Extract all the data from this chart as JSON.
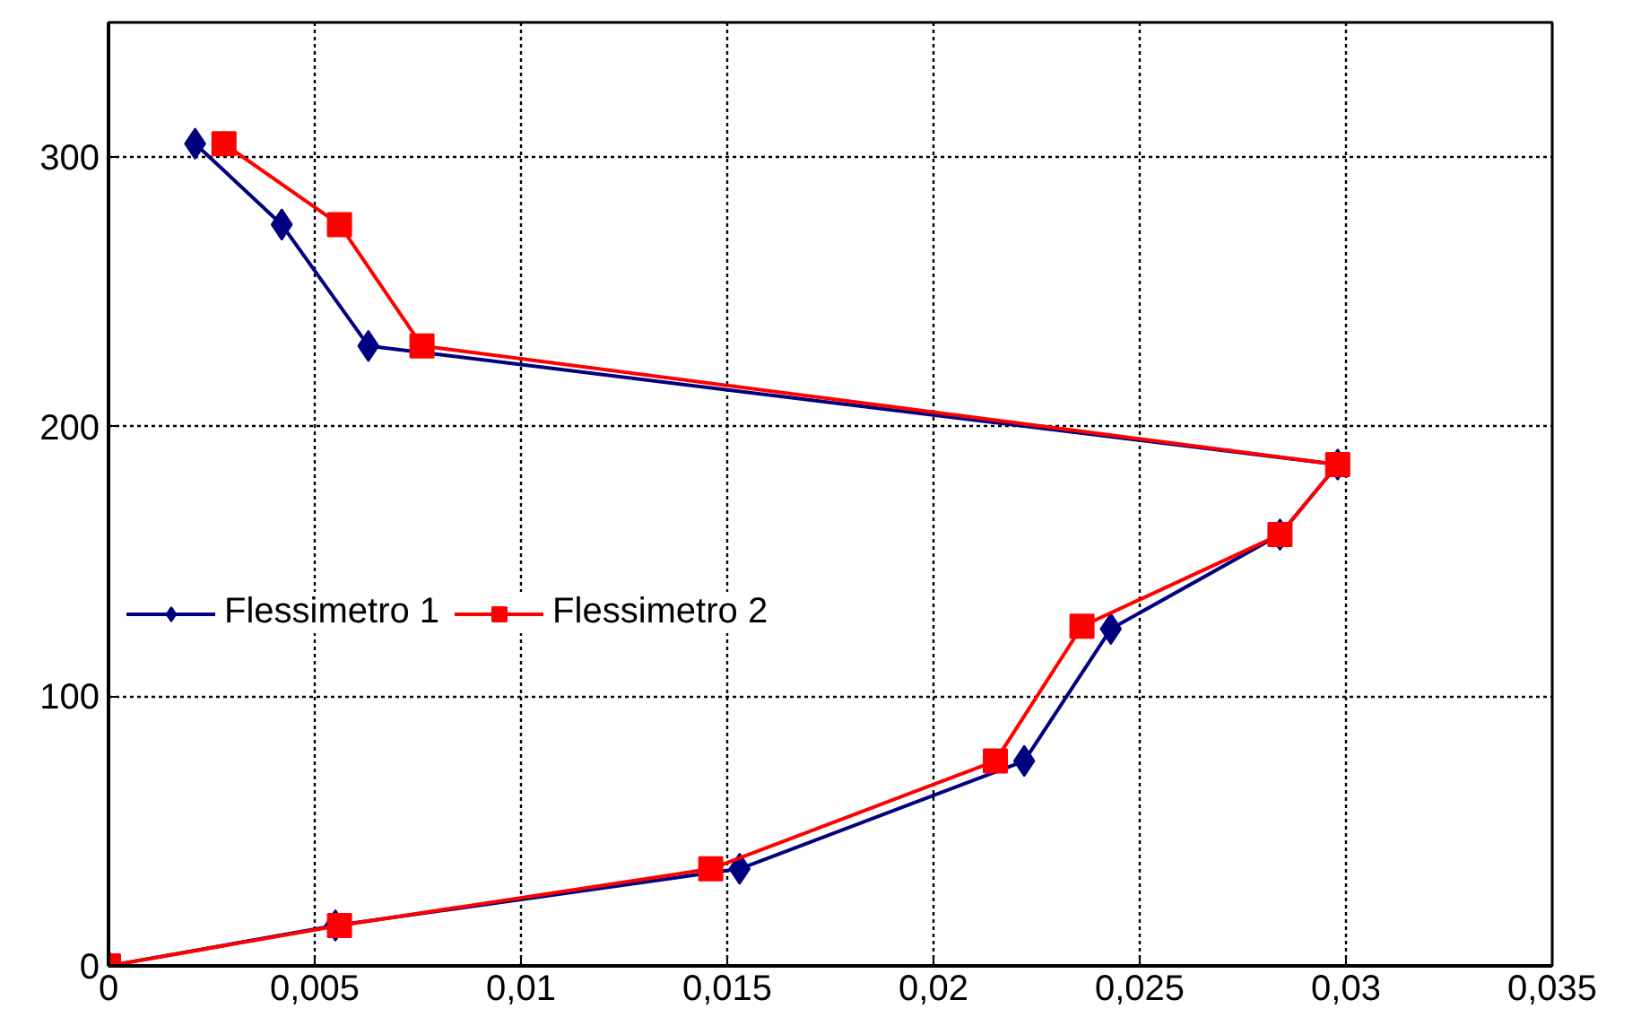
{
  "chart_data": {
    "type": "line",
    "series": [
      {
        "name": "Flessimetro 1",
        "color": "#000080",
        "marker": "diamond",
        "x": [
          0,
          0.0055,
          0.0153,
          0.0222,
          0.0243,
          0.0284,
          0.0298,
          0.0063,
          0.0042,
          0.0021
        ],
        "values": [
          0,
          15,
          36,
          76,
          125,
          160,
          186,
          230,
          275,
          305
        ]
      },
      {
        "name": "Flessimetro 2",
        "color": "#ff0000",
        "marker": "square",
        "x": [
          0,
          0.0056,
          0.0146,
          0.0215,
          0.0236,
          0.0284,
          0.0298,
          0.0076,
          0.0056,
          0.0028
        ],
        "values": [
          0,
          15,
          36,
          76,
          126,
          160,
          186,
          230,
          275,
          305
        ]
      }
    ],
    "xlim": [
      0,
      0.035
    ],
    "ylim": [
      0,
      350
    ],
    "xticks": [
      0,
      {
        "value": 0.005,
        "label": "0,005"
      },
      {
        "value": 0.01,
        "label": "0,01"
      },
      {
        "value": 0.015,
        "label": "0,015"
      },
      {
        "value": 0.02,
        "label": "0,02"
      },
      {
        "value": 0.025,
        "label": "0,025"
      },
      {
        "value": 0.03,
        "label": "0,03"
      },
      {
        "value": 0.035,
        "label": "0,035"
      }
    ],
    "yticks": [
      0,
      100,
      200,
      300
    ],
    "grid": true,
    "legend": "left",
    "line_style": "solid"
  }
}
